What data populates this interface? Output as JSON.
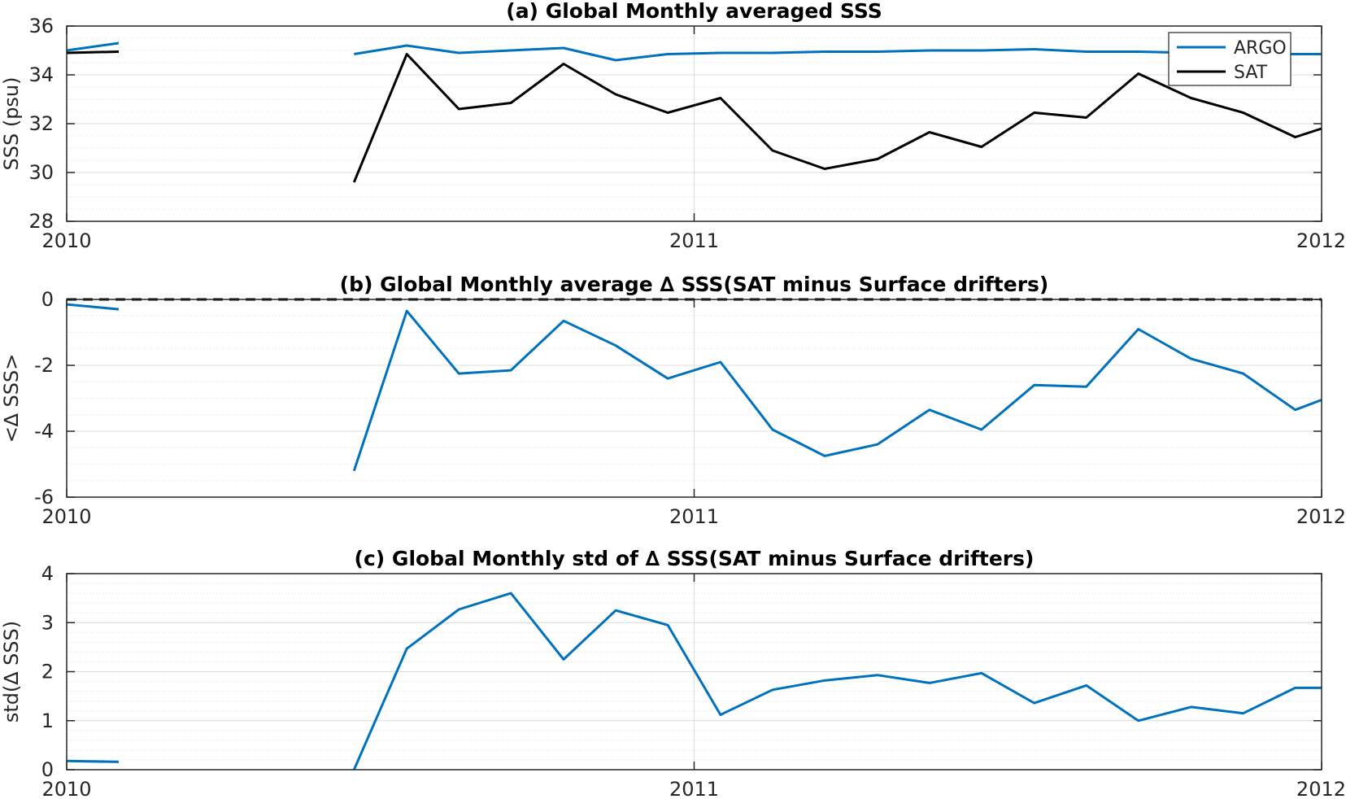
{
  "colors": {
    "argo": "#0072BD",
    "sat": "#000000",
    "grid_major": "#dcdcdc",
    "grid_minor": "#ececec",
    "axis": "#262626"
  },
  "chart_data": [
    {
      "type": "line",
      "title": "(a) Global Monthly averaged SSS",
      "xlabel": "",
      "ylabel": "SSS (psu)",
      "ylim": [
        28,
        36
      ],
      "xlim": [
        2010,
        2012
      ],
      "x_ticks": [
        "2010",
        "2011",
        "2012"
      ],
      "y_ticks": [
        "28",
        "30",
        "32",
        "34",
        "36"
      ],
      "grid": true,
      "legend": {
        "position": "top-right",
        "entries": [
          "ARGO",
          "SAT"
        ]
      },
      "series": [
        {
          "name": "ARGO",
          "color": "#0072BD",
          "x": [
            2010.0,
            2010.083,
            null,
            2010.458,
            2010.542,
            2010.625,
            2010.708,
            2010.792,
            2010.875,
            2010.958,
            2011.042,
            2011.125,
            2011.208,
            2011.292,
            2011.375,
            2011.458,
            2011.542,
            2011.625,
            2011.708,
            2011.792,
            2011.875,
            2011.958,
            2012.0
          ],
          "y": [
            35.0,
            35.3,
            null,
            34.85,
            35.2,
            34.9,
            35.0,
            35.1,
            34.6,
            34.85,
            34.9,
            34.9,
            34.95,
            34.95,
            35.0,
            35.0,
            35.05,
            34.95,
            34.95,
            34.9,
            34.85,
            34.85,
            34.85
          ]
        },
        {
          "name": "SAT",
          "color": "#000000",
          "x": [
            2010.0,
            2010.083,
            null,
            2010.458,
            2010.542,
            2010.625,
            2010.708,
            2010.792,
            2010.875,
            2010.958,
            2011.042,
            2011.125,
            2011.208,
            2011.292,
            2011.375,
            2011.458,
            2011.542,
            2011.625,
            2011.708,
            2011.792,
            2011.875,
            2011.958,
            2012.0
          ],
          "y": [
            34.9,
            34.95,
            null,
            29.6,
            34.85,
            32.6,
            32.85,
            34.45,
            33.2,
            32.45,
            33.05,
            30.9,
            30.15,
            30.55,
            31.65,
            31.05,
            32.45,
            32.25,
            34.05,
            33.05,
            32.45,
            31.45,
            31.8
          ]
        }
      ]
    },
    {
      "type": "line",
      "title": "(b) Global Monthly average ∆ SSS(SAT minus Surface drifters)",
      "xlabel": "",
      "ylabel": "<∆ SSS>",
      "ylim": [
        -6,
        0
      ],
      "xlim": [
        2010,
        2012
      ],
      "x_ticks": [
        "2010",
        "2011",
        "2012"
      ],
      "y_ticks": [
        "-6",
        "-4",
        "-2",
        "0"
      ],
      "grid": true,
      "reference_line": {
        "y": 0,
        "style": "dashed",
        "color": "#000000"
      },
      "series": [
        {
          "color": "#0072BD",
          "x": [
            2010.0,
            2010.083,
            null,
            2010.458,
            2010.542,
            2010.625,
            2010.708,
            2010.792,
            2010.875,
            2010.958,
            2011.042,
            2011.125,
            2011.208,
            2011.292,
            2011.375,
            2011.458,
            2011.542,
            2011.625,
            2011.708,
            2011.792,
            2011.875,
            2011.958,
            2012.0
          ],
          "y": [
            -0.15,
            -0.3,
            null,
            -5.2,
            -0.35,
            -2.25,
            -2.15,
            -0.65,
            -1.4,
            -2.4,
            -1.9,
            -3.95,
            -4.75,
            -4.4,
            -3.35,
            -3.95,
            -2.6,
            -2.65,
            -0.9,
            -1.8,
            -2.25,
            -3.35,
            -3.05
          ]
        }
      ]
    },
    {
      "type": "line",
      "title": "(c) Global Monthly std of ∆ SSS(SAT minus Surface drifters)",
      "xlabel": "",
      "ylabel": "std(∆ SSS)",
      "ylim": [
        0,
        4
      ],
      "xlim": [
        2010,
        2012
      ],
      "x_ticks": [
        "2010",
        "2011",
        "2012"
      ],
      "y_ticks": [
        "0",
        "1",
        "2",
        "3",
        "4"
      ],
      "grid": true,
      "series": [
        {
          "color": "#0072BD",
          "x": [
            2010.0,
            2010.083,
            null,
            2010.458,
            2010.542,
            2010.625,
            2010.708,
            2010.792,
            2010.875,
            2010.958,
            2011.042,
            2011.125,
            2011.208,
            2011.292,
            2011.375,
            2011.458,
            2011.542,
            2011.625,
            2011.708,
            2011.792,
            2011.875,
            2011.958,
            2012.0
          ],
          "y": [
            0.18,
            0.16,
            null,
            0.0,
            2.47,
            3.27,
            3.6,
            2.25,
            3.25,
            2.95,
            1.12,
            1.63,
            1.82,
            1.93,
            1.77,
            1.97,
            1.36,
            1.72,
            1.0,
            1.28,
            1.15,
            1.67,
            1.67
          ]
        }
      ]
    }
  ]
}
